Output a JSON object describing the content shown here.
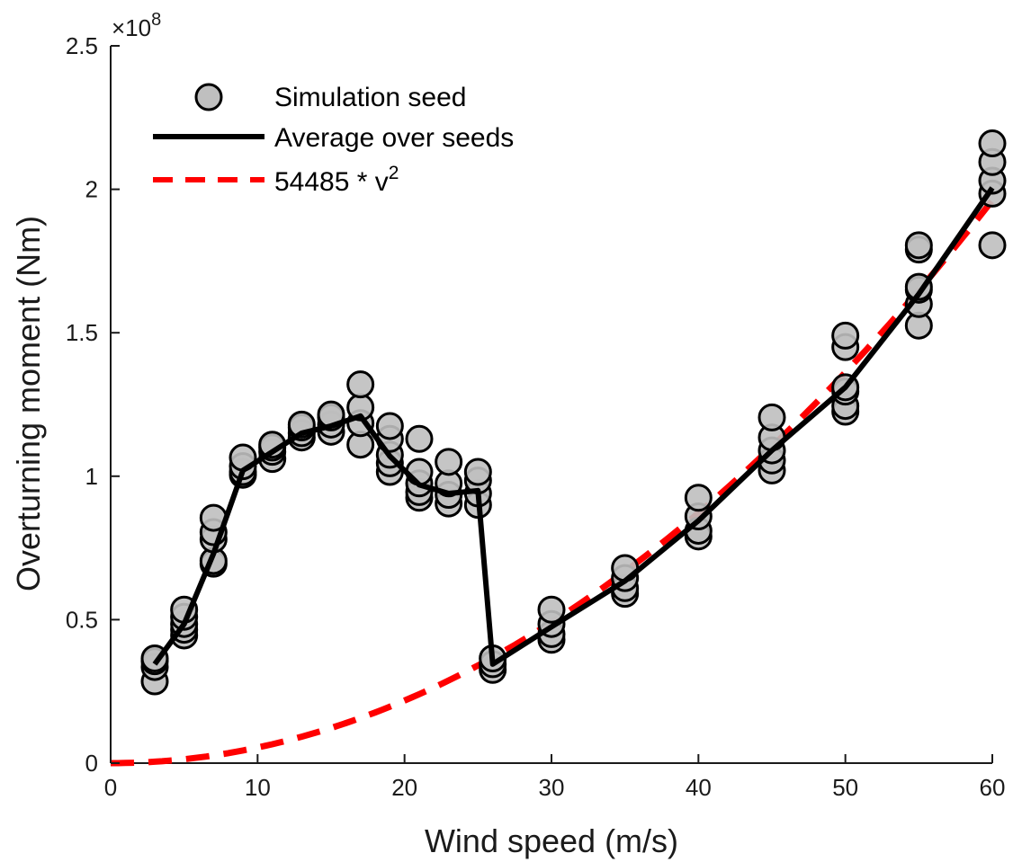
{
  "chart_data": {
    "type": "scatter",
    "xlabel": "Wind speed (m/s)",
    "ylabel": "Overturning moment (Nm)",
    "xlim": [
      0,
      60
    ],
    "ylim": [
      0,
      250000000
    ],
    "x_ticks": [
      0,
      10,
      20,
      30,
      40,
      50,
      60
    ],
    "y_ticks": [
      0,
      50000000,
      100000000,
      150000000,
      200000000,
      250000000
    ],
    "x_tick_labels": [
      "0",
      "10",
      "20",
      "30",
      "40",
      "50",
      "60"
    ],
    "y_tick_labels": [
      "0",
      "0.5",
      "1",
      "1.5",
      "2",
      "2.5"
    ],
    "y_multiplier": "×10",
    "y_multiplier_exponent": "8",
    "grid": false,
    "legend_position": "top-left",
    "legend": [
      {
        "label": "Simulation seed",
        "style": "marker"
      },
      {
        "label": "Average over seeds",
        "style": "line"
      },
      {
        "label": "54485 * v",
        "sup": "2",
        "style": "dashed"
      }
    ],
    "colors": {
      "marker_fill": "#bfbfbf",
      "marker_edge": "#000000",
      "average": "#000000",
      "fit": "#ff0000"
    },
    "series": [
      {
        "name": "Simulation seed",
        "kind": "scatter",
        "points": [
          [
            3,
            28500000
          ],
          [
            3,
            33500000
          ],
          [
            3,
            35500000
          ],
          [
            3,
            36500000
          ],
          [
            5,
            44500000
          ],
          [
            5,
            46500000
          ],
          [
            5,
            48500000
          ],
          [
            5,
            51000000
          ],
          [
            5,
            53500000
          ],
          [
            7,
            69500000
          ],
          [
            7,
            70500000
          ],
          [
            7,
            78000000
          ],
          [
            7,
            80500000
          ],
          [
            7,
            85500000
          ],
          [
            9,
            100500000
          ],
          [
            9,
            101500000
          ],
          [
            9,
            103500000
          ],
          [
            9,
            106500000
          ],
          [
            11,
            106000000
          ],
          [
            11,
            108500000
          ],
          [
            11,
            110000000
          ],
          [
            11,
            111000000
          ],
          [
            13,
            113500000
          ],
          [
            13,
            115000000
          ],
          [
            13,
            117000000
          ],
          [
            13,
            118000000
          ],
          [
            15,
            115500000
          ],
          [
            15,
            118000000
          ],
          [
            15,
            120500000
          ],
          [
            15,
            121500000
          ],
          [
            17,
            111000000
          ],
          [
            17,
            118500000
          ],
          [
            17,
            124000000
          ],
          [
            17,
            132000000
          ],
          [
            19,
            101500000
          ],
          [
            19,
            104500000
          ],
          [
            19,
            107500000
          ],
          [
            19,
            113000000
          ],
          [
            19,
            117500000
          ],
          [
            21,
            92500000
          ],
          [
            21,
            94500000
          ],
          [
            21,
            97500000
          ],
          [
            21,
            101500000
          ],
          [
            21,
            113000000
          ],
          [
            23,
            90500000
          ],
          [
            23,
            93500000
          ],
          [
            23,
            97500000
          ],
          [
            23,
            105000000
          ],
          [
            25,
            90000000
          ],
          [
            25,
            94000000
          ],
          [
            25,
            98500000
          ],
          [
            25,
            101500000
          ],
          [
            26,
            32500000
          ],
          [
            26,
            34500000
          ],
          [
            26,
            36500000
          ],
          [
            30,
            43000000
          ],
          [
            30,
            45000000
          ],
          [
            30,
            48500000
          ],
          [
            30,
            53500000
          ],
          [
            35,
            59000000
          ],
          [
            35,
            61000000
          ],
          [
            35,
            64500000
          ],
          [
            35,
            68000000
          ],
          [
            40,
            79000000
          ],
          [
            40,
            81000000
          ],
          [
            40,
            86000000
          ],
          [
            40,
            92500000
          ],
          [
            45,
            102000000
          ],
          [
            45,
            105500000
          ],
          [
            45,
            109000000
          ],
          [
            45,
            113500000
          ],
          [
            45,
            120500000
          ],
          [
            50,
            122500000
          ],
          [
            50,
            124500000
          ],
          [
            50,
            129500000
          ],
          [
            50,
            131000000
          ],
          [
            50,
            145000000
          ],
          [
            50,
            149000000
          ],
          [
            55,
            152500000
          ],
          [
            55,
            160000000
          ],
          [
            55,
            165000000
          ],
          [
            55,
            166000000
          ],
          [
            55,
            179000000
          ],
          [
            55,
            180500000
          ],
          [
            60,
            180500000
          ],
          [
            60,
            198500000
          ],
          [
            60,
            203000000
          ],
          [
            60,
            209500000
          ],
          [
            60,
            216000000
          ]
        ]
      },
      {
        "name": "Average over seeds",
        "kind": "line",
        "x": [
          3,
          5,
          7,
          9,
          11,
          13,
          15,
          17,
          19,
          21,
          23,
          25,
          26,
          30,
          35,
          40,
          45,
          50,
          55,
          60
        ],
        "y": [
          34500000,
          48500000,
          73000000,
          102000000,
          108500000,
          115000000,
          117500000,
          121000000,
          107000000,
          97000000,
          94000000,
          95000000,
          34500000,
          47500000,
          63500000,
          84500000,
          109000000,
          131000000,
          163500000,
          200500000
        ]
      },
      {
        "name": "54485 * v^2",
        "kind": "function",
        "coefficient": 54485,
        "x_range": [
          0,
          60
        ]
      }
    ]
  }
}
